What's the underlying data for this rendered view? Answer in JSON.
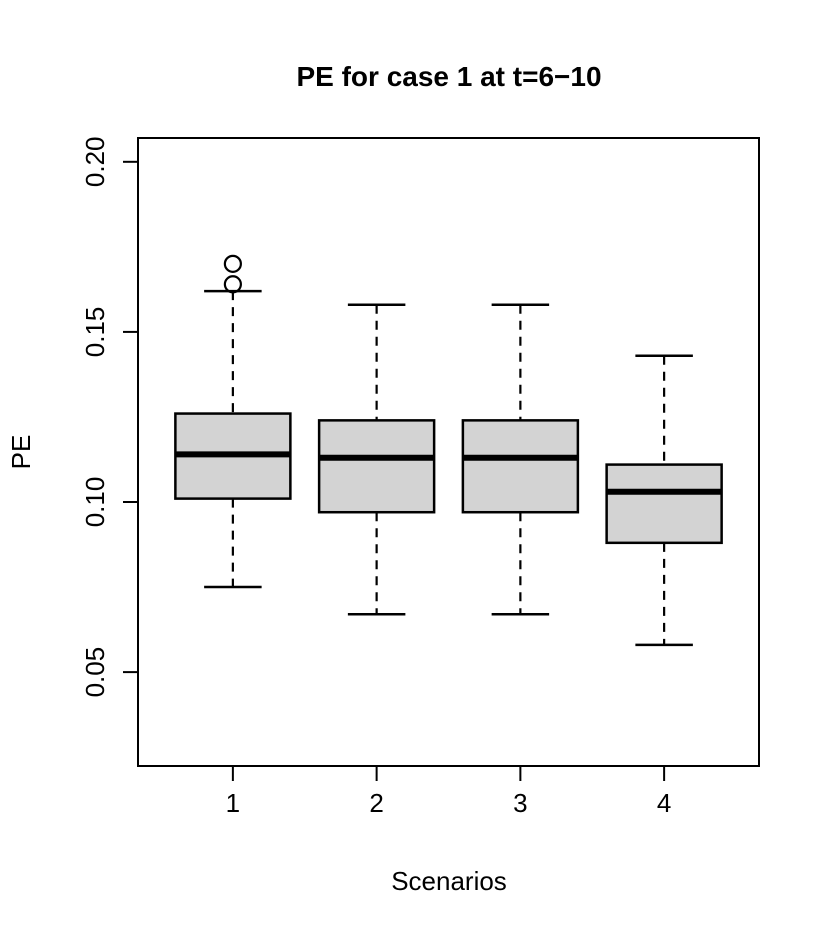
{
  "chart_data": {
    "type": "boxplot",
    "title": "PE for case 1 at t=6−10",
    "xlabel": "Scenarios",
    "ylabel": "PE",
    "categories": [
      "1",
      "2",
      "3",
      "4"
    ],
    "ytick_values": [
      0.05,
      0.1,
      0.15,
      0.2
    ],
    "ytick_labels": [
      "0.05",
      "0.10",
      "0.15",
      "0.20"
    ],
    "ylim": [
      0.0224,
      0.207
    ],
    "xlim": [
      0.34,
      4.66
    ],
    "grid": false,
    "legend": null,
    "box_width": 0.8,
    "cap_width": 0.4,
    "boxes": [
      {
        "category": "1",
        "whisker_low": 0.075,
        "q1": 0.101,
        "median": 0.114,
        "q3": 0.126,
        "whisker_high": 0.162,
        "outliers": [
          0.164,
          0.17
        ]
      },
      {
        "category": "2",
        "whisker_low": 0.067,
        "q1": 0.097,
        "median": 0.113,
        "q3": 0.124,
        "whisker_high": 0.158,
        "outliers": []
      },
      {
        "category": "3",
        "whisker_low": 0.067,
        "q1": 0.097,
        "median": 0.113,
        "q3": 0.124,
        "whisker_high": 0.158,
        "outliers": []
      },
      {
        "category": "4",
        "whisker_low": 0.058,
        "q1": 0.088,
        "median": 0.103,
        "q3": 0.111,
        "whisker_high": 0.143,
        "outliers": []
      }
    ],
    "colors": {
      "box_fill": "#d3d3d3",
      "line": "#000000",
      "background": "#ffffff"
    }
  }
}
